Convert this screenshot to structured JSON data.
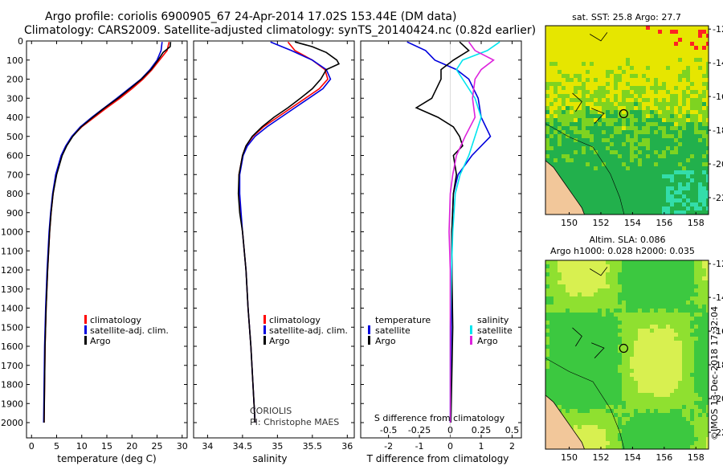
{
  "header": {
    "title_line1": "Argo profile: coriolis 6900905_67 24-Apr-2014 17.02S 153.44E (DM data)",
    "title_line2": "Climatology: CARS2009. Satellite-adjusted climatology: synTS_20140424.nc (0.82d earlier)"
  },
  "colors": {
    "climatology": "#ff0000",
    "satellite": "#0000dd",
    "argo": "#000000",
    "salinity_satellite": "#00e5ee",
    "salinity_argo": "#dd22dd",
    "land": "#f2c79a",
    "sea_warm": "#e6e600",
    "sea_cool": "#22b04c"
  },
  "chart_data": [
    {
      "type": "line",
      "name": "temperature-profile",
      "xlabel": "temperature (deg C)",
      "ylabel": "",
      "xlim": [
        -1,
        31
      ],
      "ylim": [
        2080,
        0
      ],
      "xticks": [
        0,
        5,
        10,
        15,
        20,
        25,
        30
      ],
      "yticks": [
        0,
        100,
        200,
        300,
        400,
        500,
        600,
        700,
        800,
        900,
        1000,
        1100,
        1200,
        1300,
        1400,
        1500,
        1600,
        1700,
        1800,
        1900,
        2000
      ],
      "legend": [
        "climatology",
        "satellite-adj. clim.",
        "Argo"
      ],
      "legend_position": "lower-right",
      "series": [
        {
          "name": "climatology",
          "color": "#ff0000",
          "depth": [
            5,
            50,
            100,
            150,
            200,
            250,
            300,
            350,
            400,
            450,
            500,
            550,
            600,
            700,
            800,
            900,
            1000,
            1200,
            1400,
            1600,
            1800,
            2000
          ],
          "values": [
            27.4,
            27.0,
            25.5,
            24.0,
            22.2,
            20.0,
            17.6,
            15.0,
            12.5,
            10.0,
            8.1,
            6.9,
            6.0,
            4.9,
            4.3,
            3.9,
            3.6,
            3.2,
            2.9,
            2.7,
            2.6,
            2.5
          ]
        },
        {
          "name": "satellite-adj. clim.",
          "color": "#0000dd",
          "depth": [
            5,
            50,
            100,
            150,
            200,
            250,
            300,
            350,
            400,
            450,
            500,
            550,
            600,
            700,
            800,
            900,
            1000,
            1200,
            1400,
            1600,
            1800,
            2000
          ],
          "values": [
            26.0,
            25.8,
            25.0,
            23.6,
            21.8,
            19.4,
            17.0,
            14.5,
            12.0,
            9.7,
            8.0,
            6.8,
            5.9,
            4.8,
            4.2,
            3.8,
            3.5,
            3.1,
            2.8,
            2.6,
            2.5,
            2.4
          ]
        },
        {
          "name": "Argo",
          "color": "#000000",
          "depth": [
            5,
            30,
            60,
            100,
            150,
            200,
            250,
            300,
            350,
            400,
            450,
            500,
            550,
            600,
            700,
            800,
            900,
            1000,
            1200,
            1400,
            1600,
            1800,
            2000
          ],
          "values": [
            27.7,
            27.6,
            26.2,
            25.2,
            23.8,
            21.9,
            19.6,
            17.2,
            14.6,
            12.2,
            9.9,
            8.2,
            7.0,
            6.1,
            5.0,
            4.3,
            3.9,
            3.6,
            3.2,
            2.9,
            2.7,
            2.6,
            2.5
          ]
        }
      ]
    },
    {
      "type": "line",
      "name": "salinity-profile",
      "xlabel": "salinity",
      "xlim": [
        33.8,
        36.1
      ],
      "ylim": [
        2080,
        0
      ],
      "xticks": [
        34,
        34.5,
        35,
        35.5,
        36
      ],
      "legend": [
        "climatology",
        "satellite-adj. clim.",
        "Argo"
      ],
      "legend_position": "lower-right",
      "note": [
        "CORIOLIS",
        "PI: Christophe MAES"
      ],
      "series": [
        {
          "name": "climatology",
          "color": "#ff0000",
          "depth": [
            5,
            50,
            100,
            150,
            200,
            250,
            300,
            350,
            400,
            450,
            500,
            550,
            600,
            700,
            800,
            900,
            1000,
            1200,
            1400,
            1600,
            1800,
            2000
          ],
          "values": [
            35.15,
            35.25,
            35.5,
            35.68,
            35.72,
            35.6,
            35.4,
            35.2,
            35.0,
            34.8,
            34.65,
            34.55,
            34.5,
            34.45,
            34.45,
            34.47,
            34.5,
            34.55,
            34.58,
            34.62,
            34.65,
            34.68
          ]
        },
        {
          "name": "satellite-adj. clim.",
          "color": "#0000dd",
          "depth": [
            5,
            50,
            100,
            150,
            200,
            250,
            300,
            350,
            400,
            450,
            500,
            550,
            600,
            700,
            800,
            900,
            1000,
            1200,
            1400,
            1600,
            1800,
            2000
          ],
          "values": [
            34.9,
            35.2,
            35.5,
            35.7,
            35.76,
            35.65,
            35.45,
            35.25,
            35.05,
            34.85,
            34.68,
            34.57,
            34.51,
            34.46,
            34.46,
            34.48,
            34.5,
            34.55,
            34.58,
            34.62,
            34.65,
            34.68
          ]
        },
        {
          "name": "Argo",
          "color": "#000000",
          "depth": [
            5,
            30,
            60,
            100,
            120,
            150,
            200,
            250,
            300,
            350,
            400,
            450,
            500,
            550,
            600,
            700,
            800,
            900,
            1000,
            1200,
            1400,
            1600,
            1800,
            2000
          ],
          "values": [
            35.25,
            35.5,
            35.7,
            35.85,
            35.88,
            35.7,
            35.62,
            35.5,
            35.33,
            35.15,
            34.95,
            34.78,
            34.64,
            34.55,
            34.5,
            34.45,
            34.44,
            34.46,
            34.5,
            34.55,
            34.58,
            34.62,
            34.65,
            34.68
          ]
        }
      ]
    },
    {
      "type": "line",
      "name": "difference-profile",
      "xlabel": "T difference from climatology",
      "xlabel_top": "S difference from climatology",
      "xlim": [
        -2.9,
        2.3
      ],
      "ylim": [
        2080,
        0
      ],
      "xticks": [
        -2,
        -1,
        0,
        1,
        2
      ],
      "xticks_s": [
        "-0.5",
        "-0.25",
        "0",
        "0.25",
        "0.5"
      ],
      "legend_temperature": {
        "title": "temperature",
        "items": [
          "satellite",
          "Argo"
        ]
      },
      "legend_salinity": {
        "title": "salinity",
        "items": [
          "satellite",
          "Argo"
        ]
      },
      "series": [
        {
          "name": "temperature satellite",
          "color": "#0000dd",
          "depth": [
            5,
            50,
            100,
            150,
            200,
            300,
            400,
            500,
            600,
            700,
            800,
            1000,
            1200,
            1500,
            2000
          ],
          "values": [
            -1.4,
            -0.8,
            -0.5,
            0.2,
            0.6,
            0.9,
            1.0,
            1.3,
            0.7,
            0.25,
            0.1,
            0.05,
            0.05,
            0.03,
            0.0
          ]
        },
        {
          "name": "temperature Argo",
          "color": "#000000",
          "depth": [
            5,
            50,
            100,
            150,
            200,
            300,
            350,
            400,
            450,
            500,
            550,
            600,
            700,
            800,
            1000,
            1200,
            1500,
            2000
          ],
          "values": [
            0.3,
            0.6,
            0.1,
            -0.3,
            -0.3,
            -0.6,
            -1.1,
            -0.4,
            0.1,
            0.3,
            0.4,
            0.1,
            0.2,
            0.1,
            0.05,
            0.05,
            0.08,
            0.02
          ]
        },
        {
          "name": "salinity satellite",
          "color": "#00e5ee",
          "depth": [
            5,
            50,
            100,
            150,
            200,
            300,
            400,
            500,
            600,
            700,
            800,
            1000,
            1200,
            1500,
            2000
          ],
          "values": [
            0.4,
            0.3,
            0.1,
            0.05,
            0.1,
            0.2,
            0.25,
            0.2,
            0.15,
            0.08,
            0.04,
            0.02,
            0.01,
            0.0,
            0.0
          ]
        },
        {
          "name": "salinity Argo",
          "color": "#dd22dd",
          "depth": [
            5,
            50,
            100,
            150,
            200,
            300,
            400,
            500,
            600,
            700,
            800,
            1000,
            1200,
            1500,
            2000
          ],
          "values": [
            0.15,
            0.2,
            0.35,
            0.25,
            0.2,
            0.18,
            0.2,
            0.12,
            0.05,
            0.02,
            0.0,
            -0.01,
            0.0,
            0.0,
            0.0
          ]
        }
      ]
    },
    {
      "type": "heatmap",
      "name": "sst-map",
      "title": "sat. SST: 25.8 Argo: 27.7",
      "xlim": [
        148.5,
        158.8
      ],
      "ylim": [
        -23,
        -11.8
      ],
      "xticks": [
        150,
        152,
        154,
        156,
        158
      ],
      "yticks": [
        -12,
        -14,
        -16,
        -18,
        -20,
        -22
      ],
      "marker": {
        "lon": 153.44,
        "lat": -17.02
      }
    },
    {
      "type": "heatmap",
      "name": "sla-map",
      "title": "Altim. SLA: 0.086",
      "subtitle": "Argo h1000: 0.028 h2000: 0.035",
      "xlim": [
        148.5,
        158.8
      ],
      "ylim": [
        -23,
        -11.8
      ],
      "xticks": [
        150,
        152,
        154,
        156,
        158
      ],
      "yticks": [
        -12,
        -14,
        -16,
        -18,
        -20,
        -22
      ],
      "marker": {
        "lon": 153.44,
        "lat": -17.02
      }
    }
  ],
  "footer": {
    "credit": "©IMOS 13-Dec-2018 17:32:04"
  }
}
